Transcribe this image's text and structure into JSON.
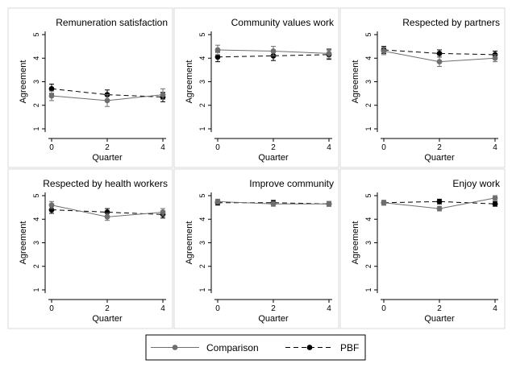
{
  "chart_data": [
    {
      "type": "line",
      "title": "Remuneration satisfaction",
      "xlabel": "Quarter",
      "ylabel": "Agreement",
      "x": [
        0,
        2,
        4
      ],
      "xticks": [
        "0",
        "2",
        "4"
      ],
      "ylim": [
        1,
        5
      ],
      "yticks": [
        "1",
        "2",
        "3",
        "4",
        "5"
      ],
      "series": [
        {
          "name": "Comparison",
          "values": [
            2.4,
            2.2,
            2.45
          ],
          "ci_low": [
            2.2,
            1.95,
            2.25
          ],
          "ci_high": [
            2.6,
            2.45,
            2.7
          ]
        },
        {
          "name": "PBF",
          "values": [
            2.7,
            2.45,
            2.35
          ],
          "ci_low": [
            2.5,
            2.25,
            2.15
          ],
          "ci_high": [
            2.9,
            2.65,
            2.55
          ]
        }
      ]
    },
    {
      "type": "line",
      "title": "Community values work",
      "xlabel": "Quarter",
      "ylabel": "Agreement",
      "x": [
        0,
        2,
        4
      ],
      "xticks": [
        "0",
        "2",
        "4"
      ],
      "ylim": [
        1,
        5
      ],
      "yticks": [
        "1",
        "2",
        "3",
        "4",
        "5"
      ],
      "series": [
        {
          "name": "Comparison",
          "values": [
            4.35,
            4.3,
            4.2
          ],
          "ci_low": [
            4.15,
            4.1,
            4.0
          ],
          "ci_high": [
            4.55,
            4.5,
            4.4
          ]
        },
        {
          "name": "PBF",
          "values": [
            4.05,
            4.1,
            4.15
          ],
          "ci_low": [
            3.85,
            3.9,
            3.95
          ],
          "ci_high": [
            4.25,
            4.3,
            4.35
          ]
        }
      ]
    },
    {
      "type": "line",
      "title": "Respected by partners",
      "xlabel": "Quarter",
      "ylabel": "Agreement",
      "x": [
        0,
        2,
        4
      ],
      "xticks": [
        "0",
        "2",
        "4"
      ],
      "ylim": [
        1,
        5
      ],
      "yticks": [
        "1",
        "2",
        "3",
        "4",
        "5"
      ],
      "series": [
        {
          "name": "Comparison",
          "values": [
            4.3,
            3.85,
            4.0
          ],
          "ci_low": [
            4.15,
            3.65,
            3.85
          ],
          "ci_high": [
            4.45,
            4.05,
            4.15
          ]
        },
        {
          "name": "PBF",
          "values": [
            4.35,
            4.2,
            4.15
          ],
          "ci_low": [
            4.2,
            4.05,
            4.0
          ],
          "ci_high": [
            4.5,
            4.35,
            4.3
          ]
        }
      ]
    },
    {
      "type": "line",
      "title": "Respected by health workers",
      "xlabel": "Quarter",
      "ylabel": "Agreement",
      "x": [
        0,
        2,
        4
      ],
      "xticks": [
        "0",
        "2",
        "4"
      ],
      "ylim": [
        1,
        5
      ],
      "yticks": [
        "1",
        "2",
        "3",
        "4",
        "5"
      ],
      "series": [
        {
          "name": "Comparison",
          "values": [
            4.6,
            4.1,
            4.3
          ],
          "ci_low": [
            4.45,
            3.95,
            4.15
          ],
          "ci_high": [
            4.75,
            4.25,
            4.45
          ]
        },
        {
          "name": "PBF",
          "values": [
            4.4,
            4.3,
            4.2
          ],
          "ci_low": [
            4.25,
            4.15,
            4.05
          ],
          "ci_high": [
            4.55,
            4.45,
            4.35
          ]
        }
      ]
    },
    {
      "type": "line",
      "title": "Improve community",
      "xlabel": "Quarter",
      "ylabel": "Agreement",
      "x": [
        0,
        2,
        4
      ],
      "xticks": [
        "0",
        "2",
        "4"
      ],
      "ylim": [
        1,
        5
      ],
      "yticks": [
        "1",
        "2",
        "3",
        "4",
        "5"
      ],
      "series": [
        {
          "name": "Comparison",
          "values": [
            4.75,
            4.65,
            4.65
          ],
          "ci_low": [
            4.65,
            4.55,
            4.55
          ],
          "ci_high": [
            4.85,
            4.75,
            4.75
          ]
        },
        {
          "name": "PBF",
          "values": [
            4.7,
            4.7,
            4.65
          ],
          "ci_low": [
            4.6,
            4.6,
            4.55
          ],
          "ci_high": [
            4.8,
            4.8,
            4.75
          ]
        }
      ]
    },
    {
      "type": "line",
      "title": "Enjoy work",
      "xlabel": "Quarter",
      "ylabel": "Agreement",
      "x": [
        0,
        2,
        4
      ],
      "xticks": [
        "0",
        "2",
        "4"
      ],
      "ylim": [
        1,
        5
      ],
      "yticks": [
        "1",
        "2",
        "3",
        "4",
        "5"
      ],
      "series": [
        {
          "name": "Comparison",
          "values": [
            4.7,
            4.45,
            4.9
          ],
          "ci_low": [
            4.6,
            4.35,
            4.8
          ],
          "ci_high": [
            4.8,
            4.55,
            5.0
          ]
        },
        {
          "name": "PBF",
          "values": [
            4.7,
            4.75,
            4.65
          ],
          "ci_low": [
            4.6,
            4.65,
            4.55
          ],
          "ci_high": [
            4.8,
            4.85,
            4.75
          ]
        }
      ]
    }
  ],
  "legend": {
    "items": [
      {
        "label": "Comparison",
        "line_style": "solid",
        "color": "#6e6e6e"
      },
      {
        "label": "PBF",
        "line_style": "dashed",
        "color": "#000000"
      }
    ]
  },
  "colors": {
    "comparison": "#6e6e6e",
    "pbf": "#000000",
    "panel_border": "#d9d9d9",
    "axis": "#000000"
  }
}
